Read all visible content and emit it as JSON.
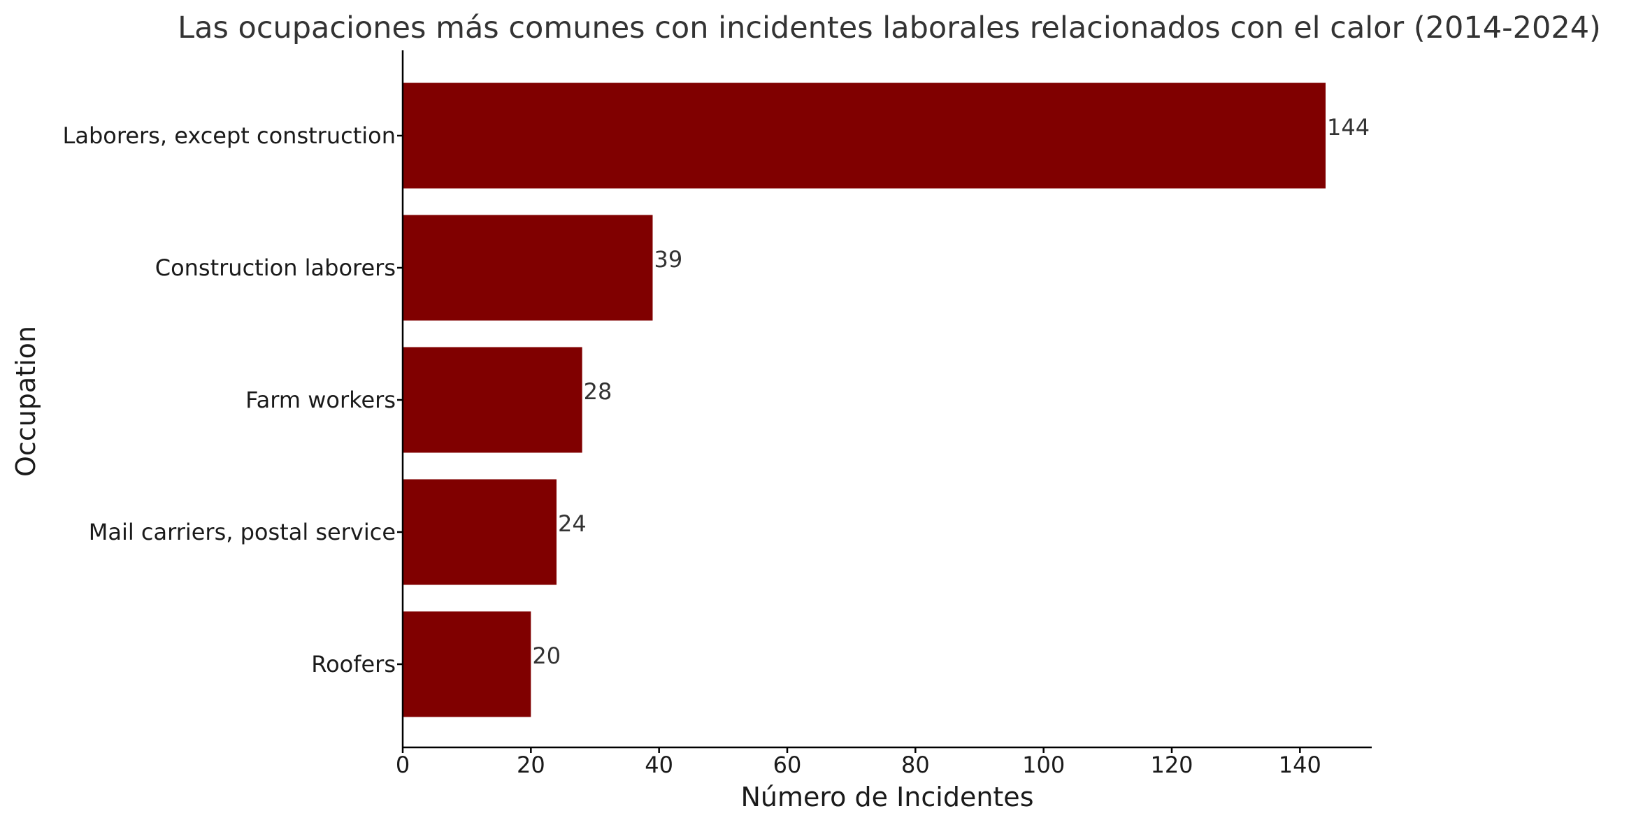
{
  "chart_data": {
    "type": "bar",
    "orientation": "horizontal",
    "title": "Las ocupaciones más comunes con incidentes laborales relacionados con el calor (2014-2024)",
    "xlabel": "Número de Incidentes",
    "ylabel": "Occupation",
    "categories": [
      "Laborers, except construction",
      "Construction laborers",
      "Farm workers",
      "Mail carriers, postal service",
      "Roofers"
    ],
    "values": [
      144,
      39,
      28,
      24,
      20
    ],
    "data_labels": [
      "144",
      "39",
      "28",
      "24",
      "20"
    ],
    "xlim": [
      0,
      151.2
    ],
    "xticks": [
      0,
      20,
      40,
      60,
      80,
      100,
      120,
      140
    ],
    "xtick_labels": [
      "0",
      "20",
      "40",
      "60",
      "80",
      "100",
      "120",
      "140"
    ],
    "bar_color": "#800000",
    "grid": false,
    "legend": "none"
  }
}
